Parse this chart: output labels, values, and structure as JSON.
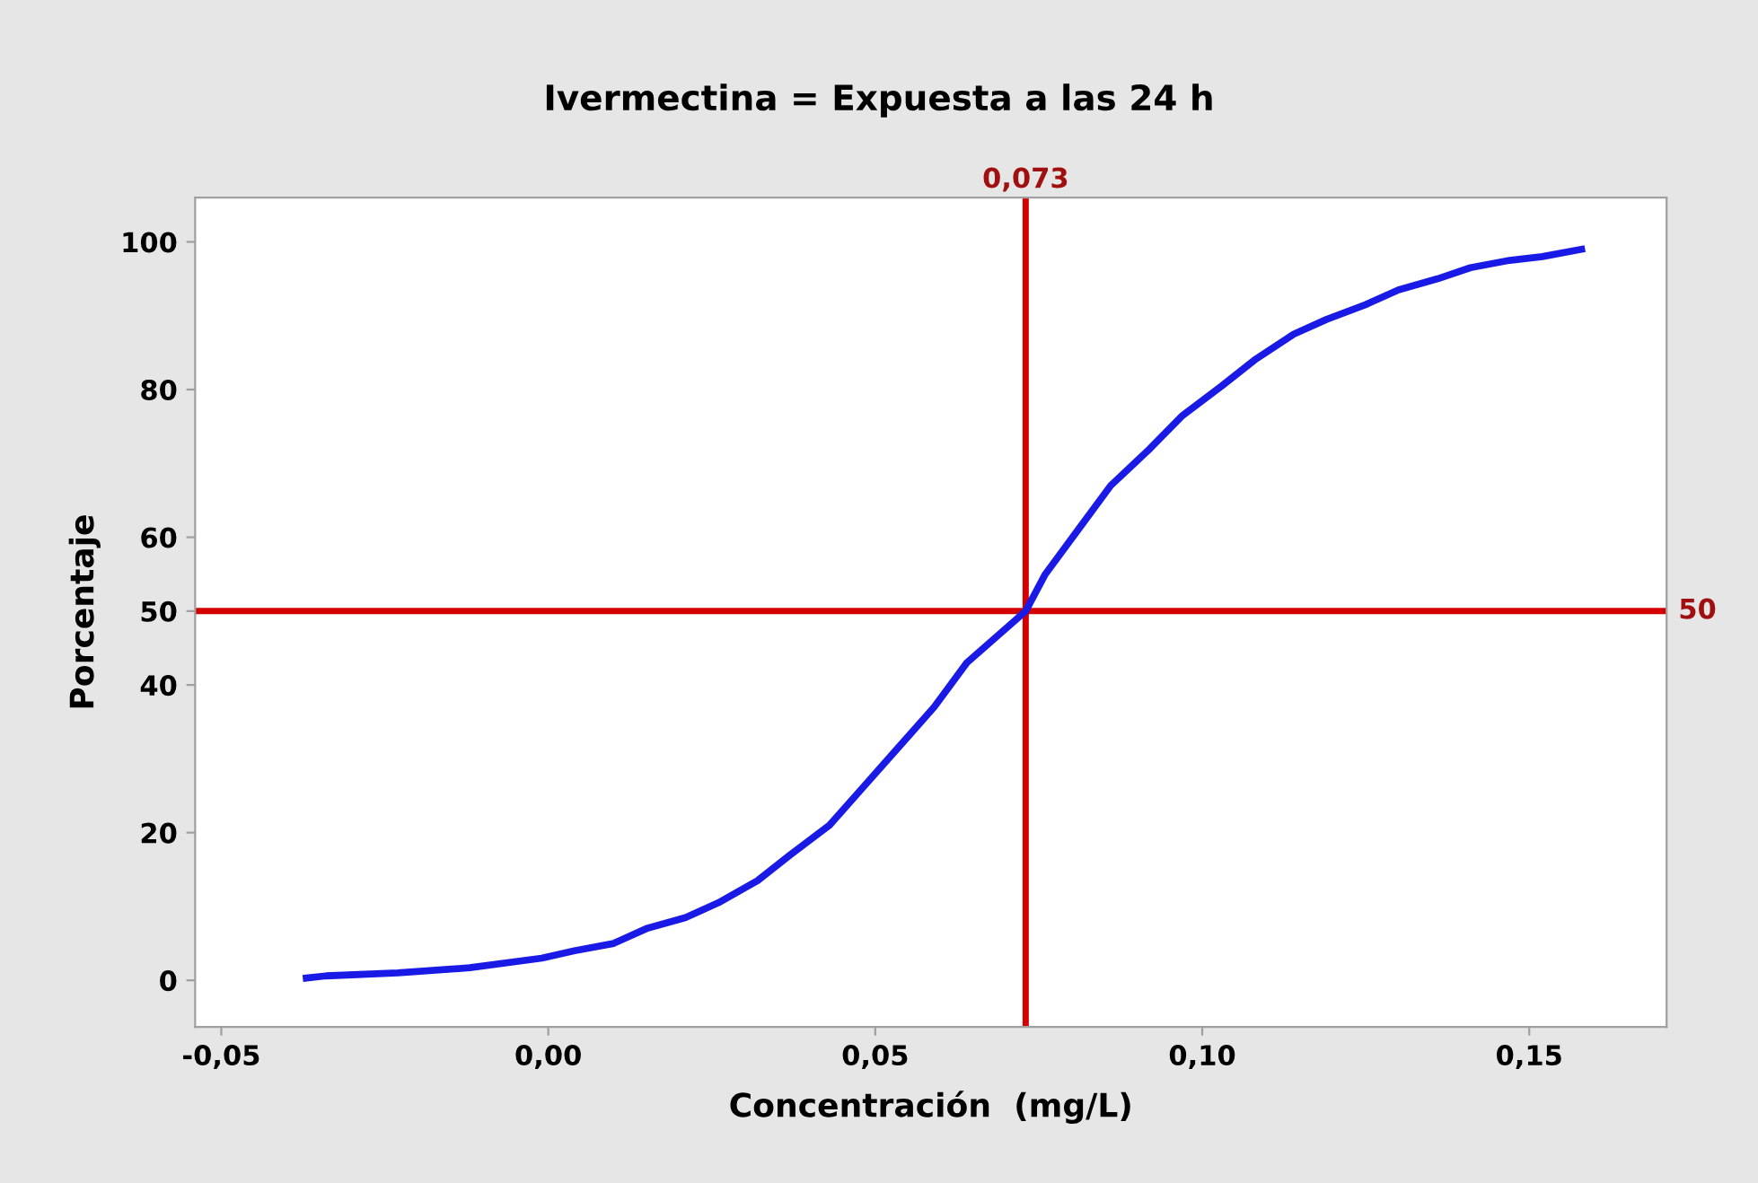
{
  "chart_data": {
    "type": "line",
    "title": "Ivermectina = Expuesta a las 24 h",
    "xlabel": "Concentración  (mg/L)",
    "ylabel": "Porcentaje",
    "xlim": [
      -0.054,
      0.171
    ],
    "ylim": [
      -6.3,
      106
    ],
    "xticks": [
      {
        "value": -0.05,
        "label": "-0,05"
      },
      {
        "value": 0.0,
        "label": "0,00"
      },
      {
        "value": 0.05,
        "label": "0,05"
      },
      {
        "value": 0.1,
        "label": "0,10"
      },
      {
        "value": 0.15,
        "label": "0,15"
      }
    ],
    "yticks": [
      0,
      20,
      40,
      50,
      60,
      80,
      100
    ],
    "grid": false,
    "legend": false,
    "marker": "none",
    "line_style": "solid",
    "series": [
      {
        "color": "#1a1ae6",
        "x": [
          -0.037,
          -0.034,
          -0.023,
          -0.012,
          -0.001,
          0.004,
          0.01,
          0.015,
          0.021,
          0.026,
          0.032,
          0.037,
          0.043,
          0.048,
          0.053,
          0.059,
          0.064,
          0.073,
          0.076,
          0.081,
          0.086,
          0.092,
          0.097,
          0.103,
          0.108,
          0.114,
          0.119,
          0.125,
          0.13,
          0.136,
          0.141,
          0.147,
          0.152,
          0.158
        ],
        "values": [
          0.3,
          0.6,
          1,
          1.7,
          3,
          4,
          5,
          7,
          8.5,
          10.5,
          13.5,
          17,
          21,
          26,
          31,
          37,
          43,
          50,
          55,
          61,
          67,
          72,
          76.5,
          80.5,
          84,
          87.5,
          89.5,
          91.5,
          93.5,
          95,
          96.5,
          97.5,
          98,
          99
        ]
      }
    ],
    "ref_lines": [
      {
        "axis": "x",
        "value": 0.073,
        "label": "0,073",
        "color": "#d40000"
      },
      {
        "axis": "y",
        "value": 50,
        "label": "50",
        "color": "#d40000"
      }
    ]
  }
}
